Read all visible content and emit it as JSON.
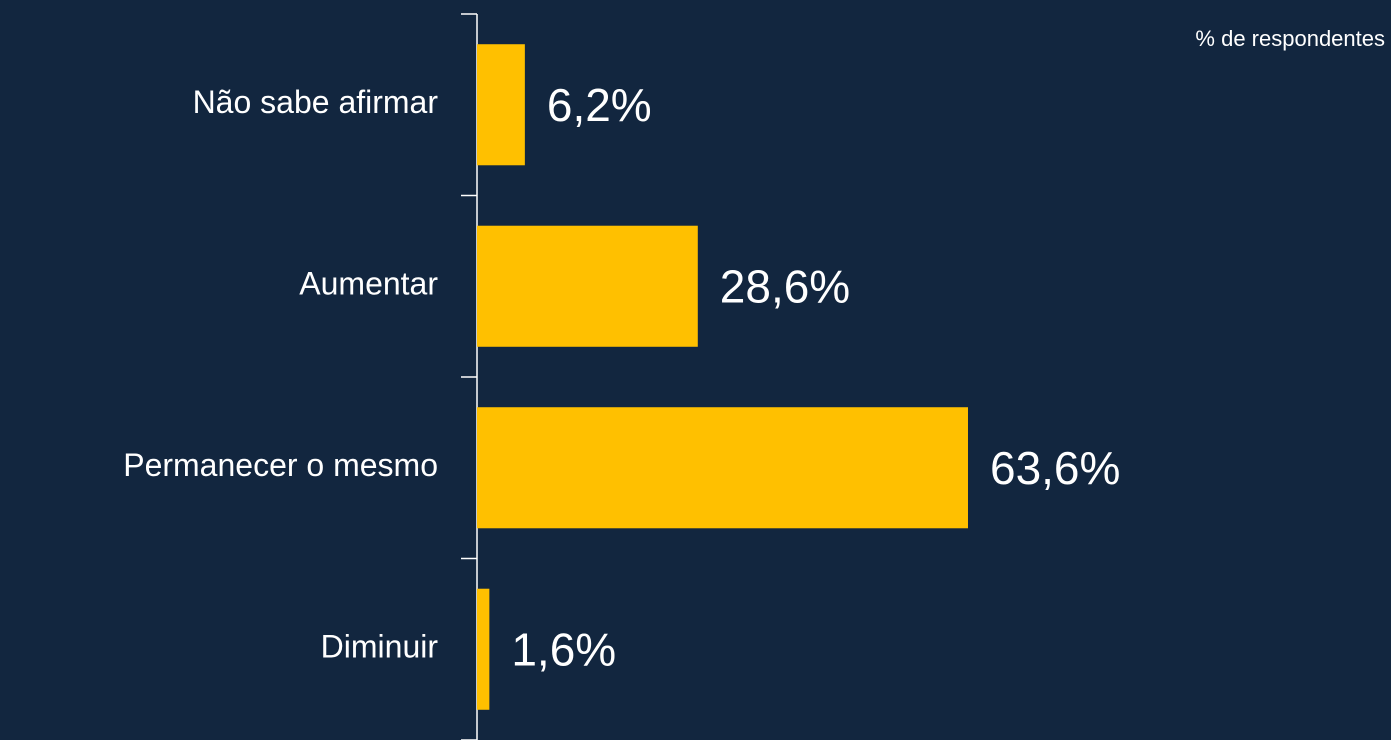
{
  "chart_data": {
    "type": "bar",
    "orientation": "horizontal",
    "annotation": "% de respondentes",
    "categories": [
      "Não sabe afirmar",
      "Aumentar",
      "Permanecer o mesmo",
      "Diminuir"
    ],
    "values": [
      6.2,
      28.6,
      63.6,
      1.6
    ],
    "value_labels": [
      "6,2%",
      "28,6%",
      "63,6%",
      "1,6%"
    ],
    "color": "#ffc000"
  }
}
